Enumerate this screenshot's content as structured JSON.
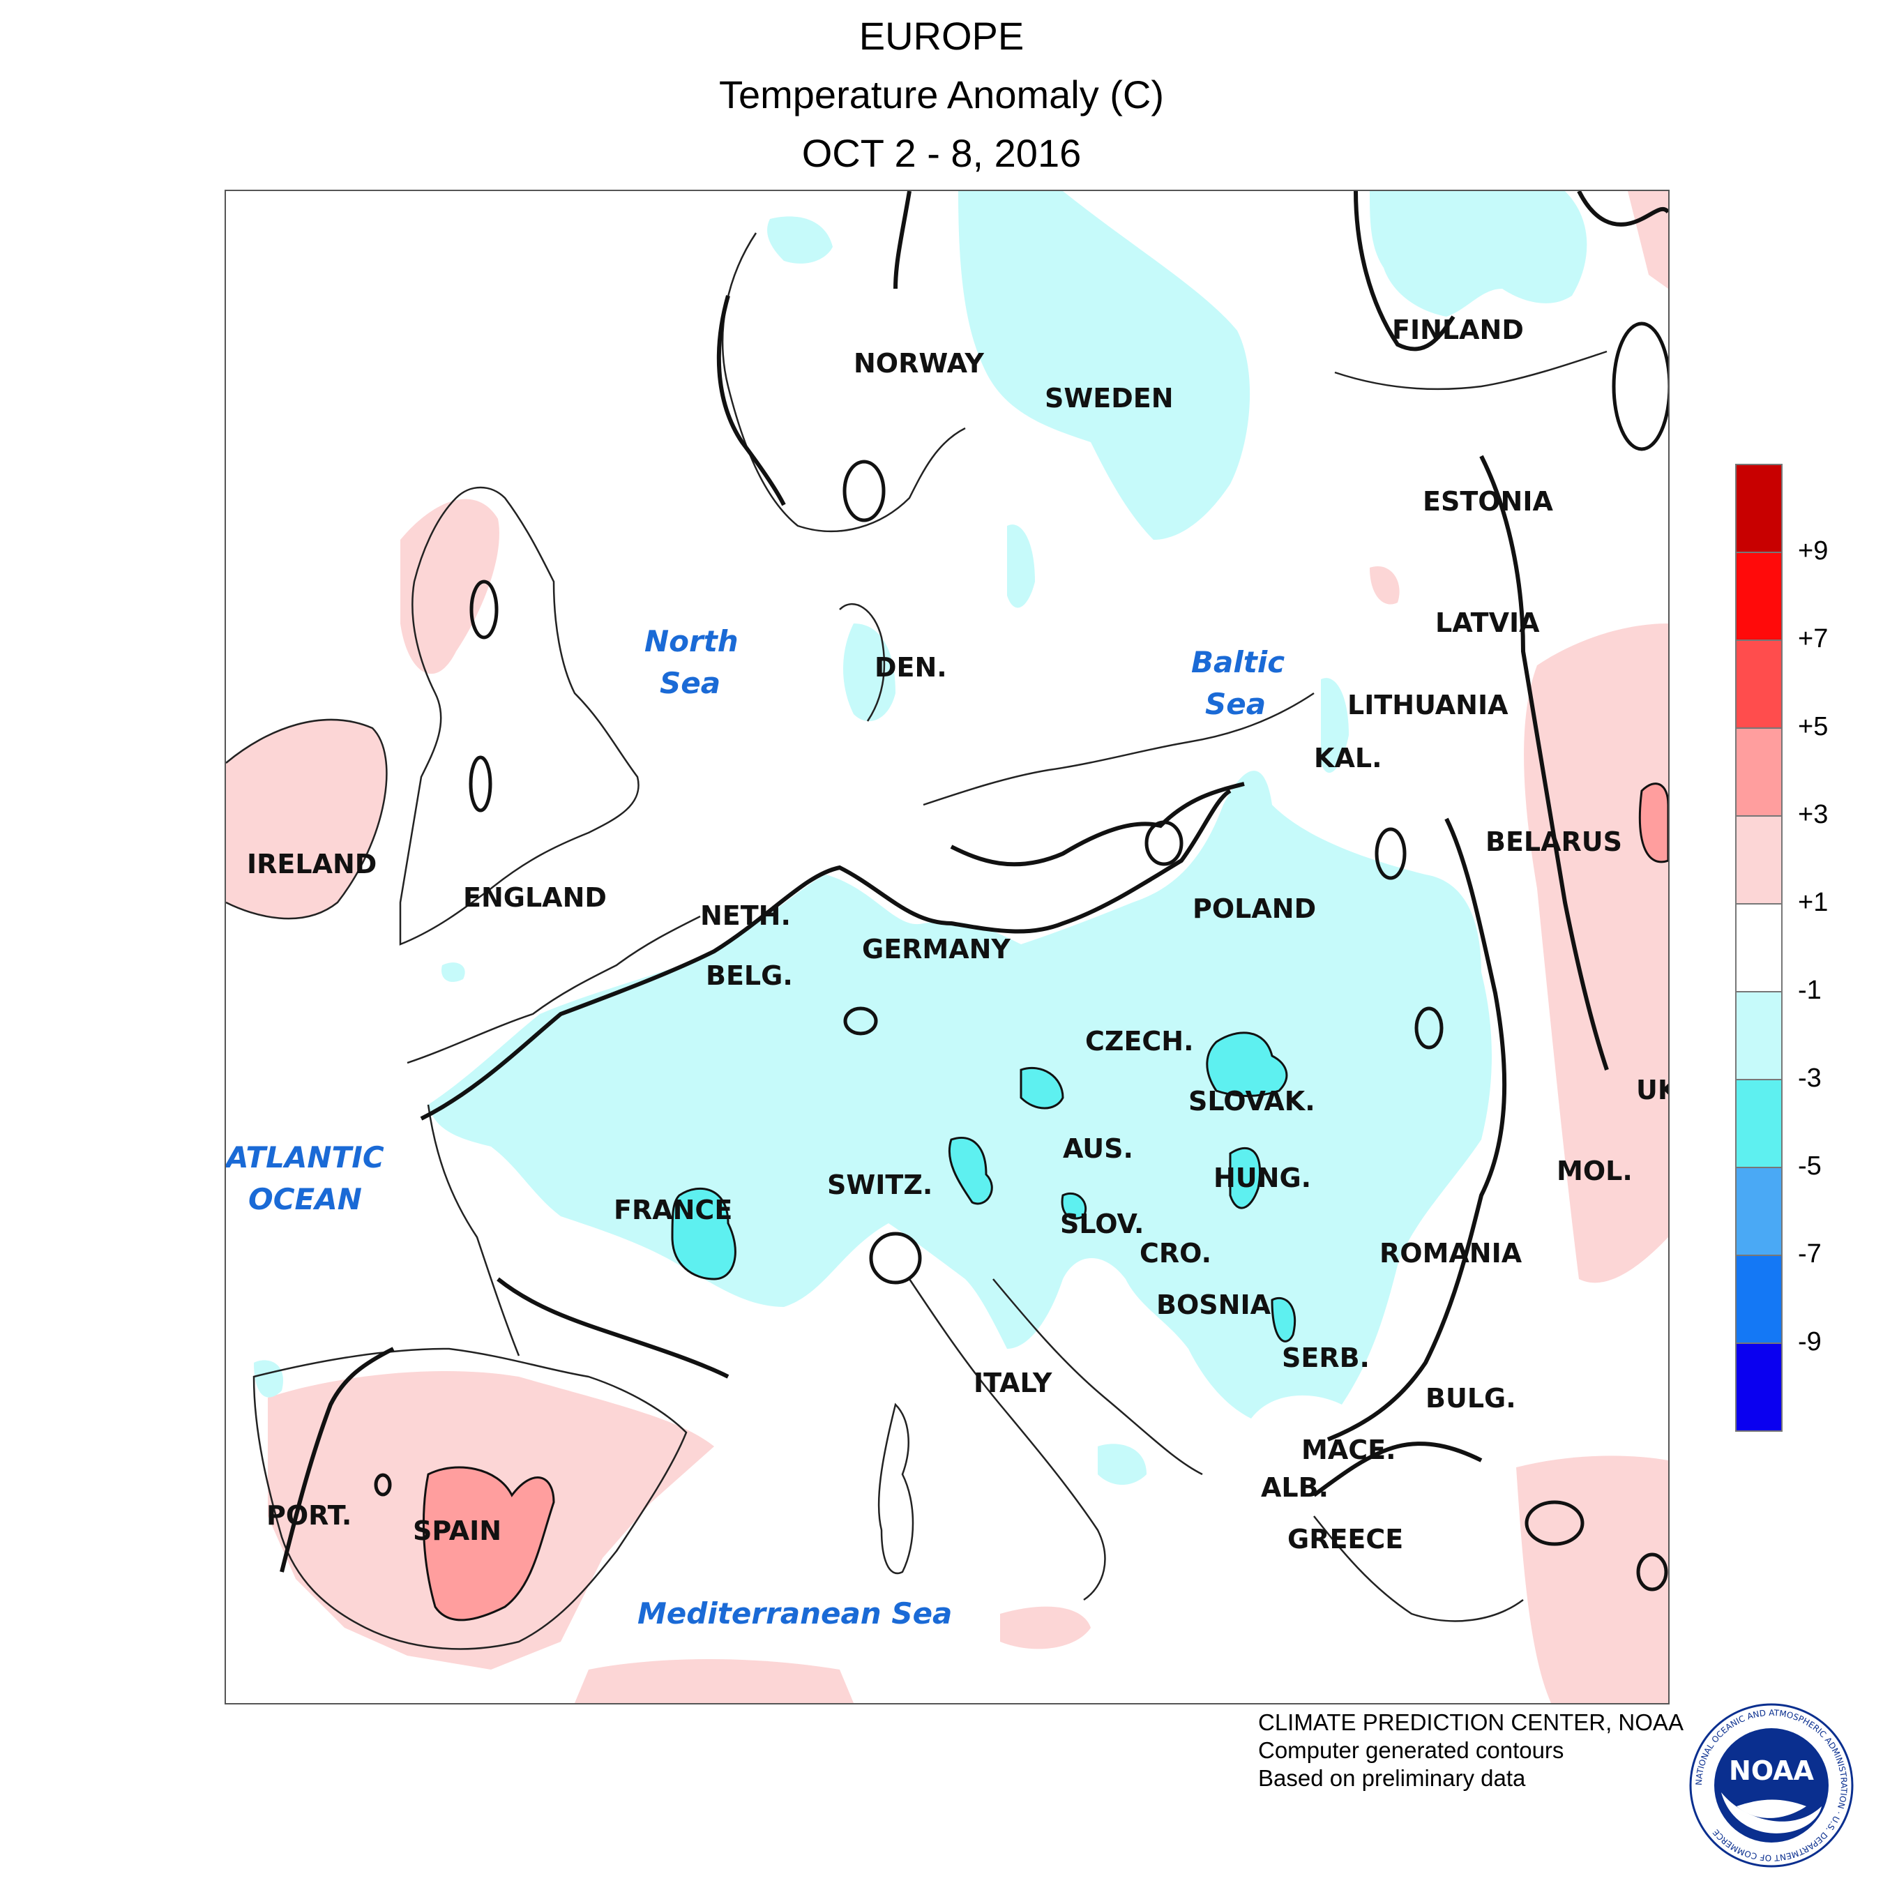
{
  "title": {
    "line1": "EUROPE",
    "line2": "Temperature Anomaly (C)",
    "line3": "OCT 2 - 8, 2016"
  },
  "legend": {
    "bins": [
      {
        "label": "",
        "color": "#c80000"
      },
      {
        "label": "+9",
        "color": "#ff0a0a"
      },
      {
        "label": "+7",
        "color": "#ff4d4d"
      },
      {
        "label": "+5",
        "color": "#ff9e9e"
      },
      {
        "label": "+3",
        "color": "#fcd6d6"
      },
      {
        "label": "+1",
        "color": "#ffffff"
      },
      {
        "label": "-1",
        "color": "#c6fafa"
      },
      {
        "label": "-3",
        "color": "#5ef0f0"
      },
      {
        "label": "-5",
        "color": "#4aa9f5"
      },
      {
        "label": "-7",
        "color": "#1478f5"
      },
      {
        "label": "-9",
        "color": "#0a00f0"
      }
    ]
  },
  "regions": {
    "ireland": "IRELAND",
    "england": "ENGLAND",
    "netherlands": "NETH.",
    "belgium": "BELG.",
    "france": "FRANCE",
    "switzerland": "SWITZ.",
    "germany": "GERMANY",
    "norway": "NORWAY",
    "sweden": "SWEDEN",
    "denmark": "DEN.",
    "finland": "FINLAND",
    "estonia": "ESTONIA",
    "latvia": "LATVIA",
    "lithuania": "LITHUANIA",
    "kaliningrad": "KAL.",
    "belarus": "BELARUS",
    "poland": "POLAND",
    "czech": "CZECH.",
    "slovakia": "SLOVAK.",
    "austria": "AUS.",
    "hungary": "HUNG.",
    "slovenia": "SLOV.",
    "croatia": "CRO.",
    "bosnia": "BOSNIA",
    "serbia": "SERB.",
    "romania": "ROMANIA",
    "moldova": "MOL.",
    "ukraine": "UK",
    "bulgaria": "BULG.",
    "macedonia": "MACE.",
    "albania": "ALB.",
    "greece": "GREECE",
    "italy": "ITALY",
    "portugal": "PORT.",
    "spain": "SPAIN"
  },
  "seas": {
    "north_sea_1": "North",
    "north_sea_2": "Sea",
    "baltic_1": "Baltic",
    "baltic_2": "Sea",
    "atlantic_1": "ATLANTIC",
    "atlantic_2": "OCEAN",
    "mediterranean": "Mediterranean Sea"
  },
  "credits": {
    "line1": "CLIMATE PREDICTION CENTER, NOAA",
    "line2": "Computer generated contours",
    "line3": "Based on preliminary data"
  },
  "logo": {
    "text": "NOAA",
    "ring_text": "NATIONAL OCEANIC AND ATMOSPHERIC ADMINISTRATION · U.S. DEPARTMENT OF COMMERCE",
    "color": "#0a2f8f"
  }
}
